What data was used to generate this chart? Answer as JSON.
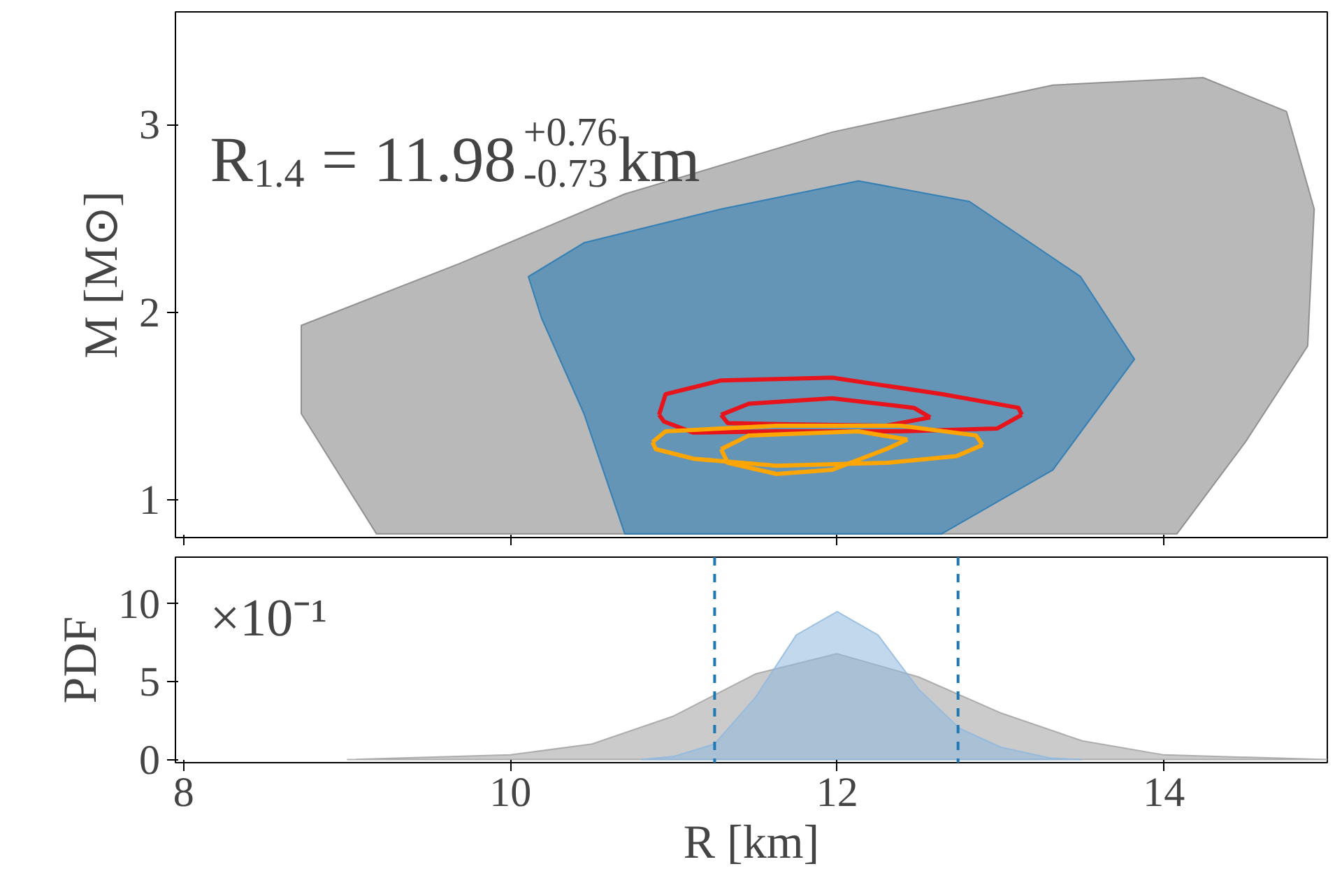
{
  "chart_data": [
    {
      "type": "area",
      "ylabel": "M [M⊙]",
      "annotations": [
        "R$_{1.4}$ = 11.98$^{+0.76}$$_{-0.73}$km"
      ],
      "xlim": [
        7.95,
        15
      ],
      "xticks": [
        8,
        10,
        12,
        14
      ],
      "ylim": [
        0.8,
        3.6
      ],
      "yticks": [
        1,
        2,
        3
      ],
      "tick_labels": "y",
      "grid": false,
      "series": [
        {
          "color": "#808080",
          "x": [
            8.72,
            9.69,
            10.7,
            11.97,
            13.32,
            14.24,
            14.75,
            14.92,
            14.88,
            14.5,
            14.08,
            9.18,
            8.72
          ],
          "values": [
            1.93,
            2.26,
            2.63,
            2.96,
            3.21,
            3.25,
            3.07,
            2.55,
            1.82,
            1.31,
            0.82,
            0.82,
            1.46
          ]
        },
        {
          "color": "#1f77b4",
          "x": [
            10.11,
            10.45,
            11.29,
            12.13,
            12.81,
            13.49,
            13.82,
            13.32,
            12.64,
            10.7,
            10.45,
            10.19
          ],
          "values": [
            2.19,
            2.37,
            2.55,
            2.7,
            2.59,
            2.19,
            1.75,
            1.16,
            0.82,
            0.82,
            1.46,
            1.97
          ]
        },
        {
          "type": "line",
          "color": "#e8141c",
          "x": [
            10.91,
            10.95,
            11.29,
            11.97,
            12.64,
            13.11,
            13.13
          ],
          "values": [
            1.454,
            1.564,
            1.637,
            1.652,
            1.564,
            1.491,
            1.454
          ]
        },
        {
          "type": "line",
          "color": "#e8141c",
          "x": [
            10.91,
            10.94,
            11.12,
            11.63,
            12.39,
            12.98,
            13.13
          ],
          "values": [
            1.454,
            1.418,
            1.359,
            1.366,
            1.366,
            1.381,
            1.454
          ]
        },
        {
          "type": "line",
          "color": "#e8141c",
          "x": [
            11.29,
            11.46,
            11.97,
            12.47,
            12.57
          ],
          "values": [
            1.454,
            1.513,
            1.542,
            1.491,
            1.44
          ]
        },
        {
          "type": "line",
          "color": "#e8141c",
          "x": [
            11.29,
            11.33,
            11.71,
            12.3,
            12.57
          ],
          "values": [
            1.454,
            1.41,
            1.403,
            1.396,
            1.44
          ]
        },
        {
          "type": "line",
          "color": "#ffa500",
          "x": [
            10.87,
            10.95,
            11.63,
            12.39,
            12.85,
            12.89
          ],
          "values": [
            1.308,
            1.366,
            1.396,
            1.396,
            1.344,
            1.293
          ]
        },
        {
          "type": "line",
          "color": "#ffa500",
          "x": [
            10.87,
            10.89,
            11.12,
            11.63,
            12.3,
            12.73,
            12.89
          ],
          "values": [
            1.308,
            1.271,
            1.22,
            1.183,
            1.198,
            1.234,
            1.293
          ]
        },
        {
          "type": "line",
          "color": "#ffa500",
          "x": [
            11.29,
            11.46,
            12.13,
            12.43
          ],
          "values": [
            1.271,
            1.344,
            1.366,
            1.322
          ]
        },
        {
          "type": "line",
          "color": "#ffa500",
          "x": [
            11.29,
            11.33,
            11.63,
            11.97,
            12.3,
            12.43
          ],
          "values": [
            1.271,
            1.198,
            1.139,
            1.161,
            1.271,
            1.322
          ]
        }
      ]
    },
    {
      "type": "area",
      "xlabel": "R [km]",
      "ylabel": "PDF",
      "annotations": [
        "×10⁻¹"
      ],
      "xlim": [
        7.95,
        15
      ],
      "xticks": [
        8,
        10,
        12,
        14
      ],
      "ylim": [
        -0.2,
        13
      ],
      "yticks": [
        0,
        5,
        10
      ],
      "grid": false,
      "ref_lines": [
        {
          "axis": "x",
          "value": 11.25,
          "color": "#1f77b4",
          "line_style": "dashed"
        },
        {
          "axis": "x",
          "value": 12.74,
          "color": "#1f77b4",
          "line_style": "dashed"
        }
      ],
      "series": [
        {
          "color": "#a0a0a0",
          "x": [
            9.0,
            10.0,
            10.5,
            11.0,
            11.5,
            12.0,
            12.5,
            13.0,
            13.5,
            14.0,
            15.0
          ],
          "values": [
            0,
            0.3,
            1.0,
            2.8,
            5.5,
            6.8,
            5.3,
            3.0,
            1.2,
            0.3,
            0
          ]
        },
        {
          "color": "#8fb8de",
          "x": [
            10.8,
            11.0,
            11.25,
            11.5,
            11.75,
            12.0,
            12.25,
            12.5,
            12.75,
            13.0,
            13.3,
            13.5
          ],
          "values": [
            0,
            0.2,
            1.0,
            4.0,
            8.0,
            9.5,
            8.0,
            4.5,
            2.0,
            0.8,
            0.1,
            0
          ]
        }
      ]
    }
  ]
}
